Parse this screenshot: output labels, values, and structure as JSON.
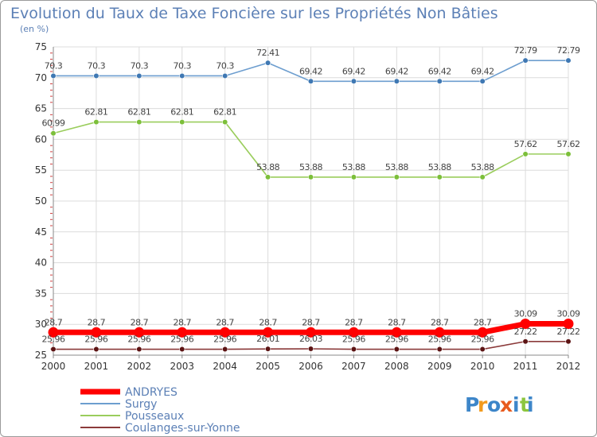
{
  "chart_data": {
    "type": "line",
    "title": "Evolution du Taux de Taxe Foncière sur les Propriétés Non Bâties",
    "subtitle": "(en %)",
    "x": [
      "2000",
      "2001",
      "2002",
      "2003",
      "2004",
      "2005",
      "2006",
      "2007",
      "2008",
      "2009",
      "2010",
      "2011",
      "2012"
    ],
    "ylim": [
      25,
      75
    ],
    "yticks": [
      25,
      30,
      35,
      40,
      45,
      50,
      55,
      60,
      65,
      70,
      75
    ],
    "grid": true,
    "legend_position": "bottom-left",
    "series": [
      {
        "name": "ANDRYES",
        "color": "#ff0000",
        "emphasis": true,
        "values": [
          28.7,
          28.7,
          28.7,
          28.7,
          28.7,
          28.7,
          28.7,
          28.7,
          28.7,
          28.7,
          28.7,
          30.09,
          30.09
        ],
        "labels": [
          "28.7",
          "28.7",
          "28.7",
          "28.7",
          "28.7",
          "28.7",
          "28.7",
          "28.7",
          "28.7",
          "28.7",
          "28.7",
          "30.09",
          "30.09"
        ]
      },
      {
        "name": "Surgy",
        "color": "#6d9ecf",
        "marker_color": "#3f78b3",
        "values": [
          70.3,
          70.3,
          70.3,
          70.3,
          70.3,
          72.41,
          69.42,
          69.42,
          69.42,
          69.42,
          69.42,
          72.79,
          72.79
        ],
        "labels": [
          "70.3",
          "70.3",
          "70.3",
          "70.3",
          "70.3",
          "72.41",
          "69.42",
          "69.42",
          "69.42",
          "69.42",
          "69.42",
          "72.79",
          "72.79"
        ]
      },
      {
        "name": "Pousseaux",
        "color": "#9acd5c",
        "marker_color": "#7cbf3a",
        "values": [
          60.99,
          62.81,
          62.81,
          62.81,
          62.81,
          53.88,
          53.88,
          53.88,
          53.88,
          53.88,
          53.88,
          57.62,
          57.62
        ],
        "labels": [
          "60.99",
          "62.81",
          "62.81",
          "62.81",
          "62.81",
          "53.88",
          "53.88",
          "53.88",
          "53.88",
          "53.88",
          "53.88",
          "57.62",
          "57.62"
        ]
      },
      {
        "name": "Coulanges-sur-Yonne",
        "color": "#8b3a3a",
        "marker_color": "#5c1414",
        "values": [
          25.96,
          25.96,
          25.96,
          25.96,
          25.96,
          26.01,
          26.03,
          25.96,
          25.96,
          25.96,
          25.96,
          27.22,
          27.22
        ],
        "labels": [
          "25.96",
          "25.96",
          "25.96",
          "25.96",
          "25.96",
          "26.01",
          "26.03",
          "25.96",
          "25.96",
          "25.96",
          "25.96",
          "27.22",
          "27.22"
        ]
      }
    ]
  },
  "logo": {
    "text": "Proxiti",
    "letters": [
      {
        "ch": "P",
        "color": "#3d86c9"
      },
      {
        "ch": "r",
        "color": "#f29a1d"
      },
      {
        "ch": "o",
        "color": "#3d86c9"
      },
      {
        "ch": "x",
        "color": "#e85b1e"
      },
      {
        "ch": "i",
        "color": "#3d86c9"
      },
      {
        "ch": "t",
        "color": "#8cc63e"
      },
      {
        "ch": "i",
        "color": "#3d86c9"
      }
    ]
  }
}
